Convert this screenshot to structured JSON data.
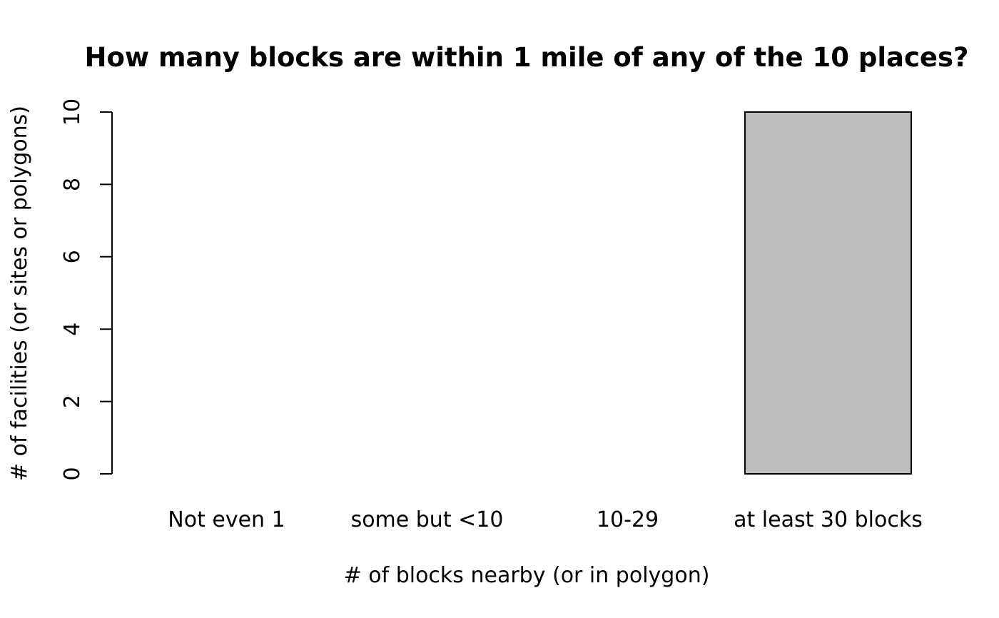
{
  "chart_data": {
    "type": "bar",
    "title": "How many blocks are within 1 mile of any of the 10 places?",
    "xlabel": "# of blocks nearby (or in polygon)",
    "ylabel": "# of facilities (or sites or polygons)",
    "categories": [
      "Not even 1",
      "some but <10",
      "10-29",
      "at least 30 blocks"
    ],
    "values": [
      0,
      0,
      0,
      10
    ],
    "ylim": [
      0,
      10
    ],
    "yticks": [
      0,
      2,
      4,
      6,
      8,
      10
    ],
    "ytick_labels": [
      "0",
      "2",
      "4",
      "6",
      "8",
      "10"
    ],
    "grid": false,
    "bar_color": "#bebebe",
    "border_color": "#000000"
  }
}
